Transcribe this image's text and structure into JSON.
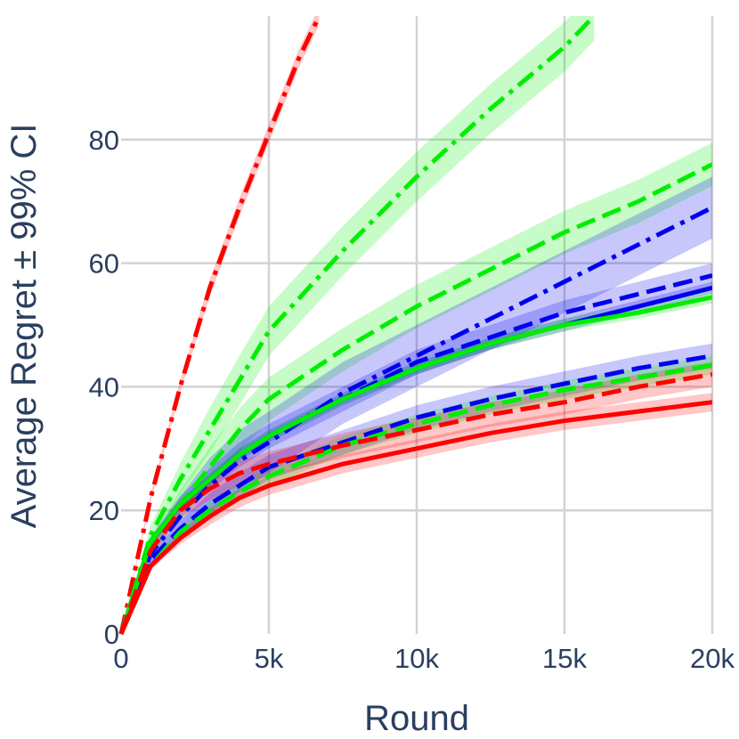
{
  "chart_data": {
    "type": "line",
    "xlabel": "Round",
    "ylabel": "Average Regret ± 99% CI",
    "xlim": [
      0,
      20000
    ],
    "ylim": [
      0,
      100
    ],
    "grid": true,
    "legend": "none",
    "x_ticks": [
      {
        "value": 0,
        "label": "0"
      },
      {
        "value": 5000,
        "label": "5k"
      },
      {
        "value": 10000,
        "label": "10k"
      },
      {
        "value": 15000,
        "label": "15k"
      },
      {
        "value": 20000,
        "label": "20k"
      }
    ],
    "y_ticks": [
      {
        "value": 0,
        "label": "0"
      },
      {
        "value": 20,
        "label": "20"
      },
      {
        "value": 40,
        "label": "40"
      },
      {
        "value": 60,
        "label": "60"
      },
      {
        "value": 80,
        "label": "80"
      }
    ],
    "series": [
      {
        "color": "#ff0000",
        "dash": "dashdot",
        "x": [
          0,
          1000,
          2000,
          3000,
          4000,
          5000,
          6000,
          6700
        ],
        "y": [
          0,
          22,
          40,
          56,
          69,
          81,
          93,
          100
        ],
        "ci": 1.5
      },
      {
        "color": "#00ee00",
        "dash": "dashdot",
        "x": [
          0,
          1000,
          2000,
          3000,
          4000,
          5000,
          7500,
          10000,
          12500,
          15000,
          16000
        ],
        "y": [
          0,
          16,
          25,
          33,
          41,
          49,
          62,
          74,
          85,
          95,
          100
        ],
        "ci": 4
      },
      {
        "color": "#00ee00",
        "dash": "dash",
        "x": [
          0,
          1000,
          2000,
          3000,
          4000,
          5000,
          7500,
          10000,
          12500,
          15000,
          17500,
          20000
        ],
        "y": [
          0,
          14,
          21,
          27,
          33,
          38,
          46,
          53,
          59,
          65,
          70,
          76
        ],
        "ci": 3.5
      },
      {
        "color": "#0000ee",
        "dash": "dashdot",
        "x": [
          0,
          1000,
          2000,
          3000,
          4000,
          5000,
          7500,
          10000,
          12500,
          15000,
          17500,
          20000
        ],
        "y": [
          0,
          13,
          19,
          24,
          28,
          31,
          39,
          45,
          51,
          57,
          63,
          69
        ],
        "ci": 5
      },
      {
        "color": "#0000ee",
        "dash": "dash",
        "x": [
          0,
          1000,
          2000,
          3000,
          4000,
          5000,
          7500,
          10000,
          12500,
          15000,
          17500,
          20000
        ],
        "y": [
          0,
          15,
          21,
          25,
          29,
          32,
          38,
          44,
          48,
          52,
          55,
          58
        ],
        "ci": 2
      },
      {
        "color": "#0000ee",
        "dash": "solid",
        "x": [
          0,
          1000,
          2000,
          3000,
          4000,
          5000,
          7500,
          10000,
          12500,
          15000,
          17500,
          20000
        ],
        "y": [
          0,
          15,
          21,
          25,
          29,
          32,
          38,
          43,
          47,
          50,
          53,
          56
        ],
        "ci": 1
      },
      {
        "color": "#00ee00",
        "dash": "solid",
        "x": [
          0,
          1000,
          2000,
          3000,
          4000,
          5000,
          7500,
          10000,
          12500,
          15000,
          17500,
          20000
        ],
        "y": [
          0,
          15,
          21,
          25,
          29,
          32,
          38,
          43,
          47,
          50,
          52,
          54.5
        ],
        "ci": 1
      },
      {
        "color": "#0000ee",
        "dash": "dash",
        "x": [
          0,
          1000,
          2000,
          3000,
          4000,
          5000,
          7500,
          10000,
          12500,
          15000,
          17500,
          20000
        ],
        "y": [
          0,
          12,
          17,
          21,
          24,
          27,
          31,
          35,
          38,
          40.5,
          43,
          45
        ],
        "ci": 2
      },
      {
        "color": "#00ee00",
        "dash": "dash",
        "x": [
          0,
          1000,
          2000,
          3000,
          4000,
          5000,
          7500,
          10000,
          12500,
          15000,
          17500,
          20000
        ],
        "y": [
          0,
          11,
          16.5,
          20,
          23,
          25.5,
          30.5,
          34,
          37,
          39.5,
          41.5,
          43.5
        ],
        "ci": 1.5
      },
      {
        "color": "#ff0000",
        "dash": "dash",
        "x": [
          0,
          1000,
          2000,
          3000,
          4000,
          5000,
          7500,
          10000,
          12500,
          15000,
          17500,
          20000
        ],
        "y": [
          0,
          13.5,
          20,
          23.5,
          26,
          27.5,
          30.5,
          33,
          35.5,
          37.5,
          40,
          42
        ],
        "ci": 2
      },
      {
        "color": "#ff0000",
        "dash": "solid",
        "x": [
          0,
          1000,
          2000,
          3000,
          4000,
          5000,
          7500,
          10000,
          12500,
          15000,
          17500,
          20000
        ],
        "y": [
          0,
          11,
          15.5,
          19,
          22,
          24,
          27.5,
          30,
          32.5,
          34.5,
          36,
          37.5
        ],
        "ci": 1.5
      }
    ]
  }
}
